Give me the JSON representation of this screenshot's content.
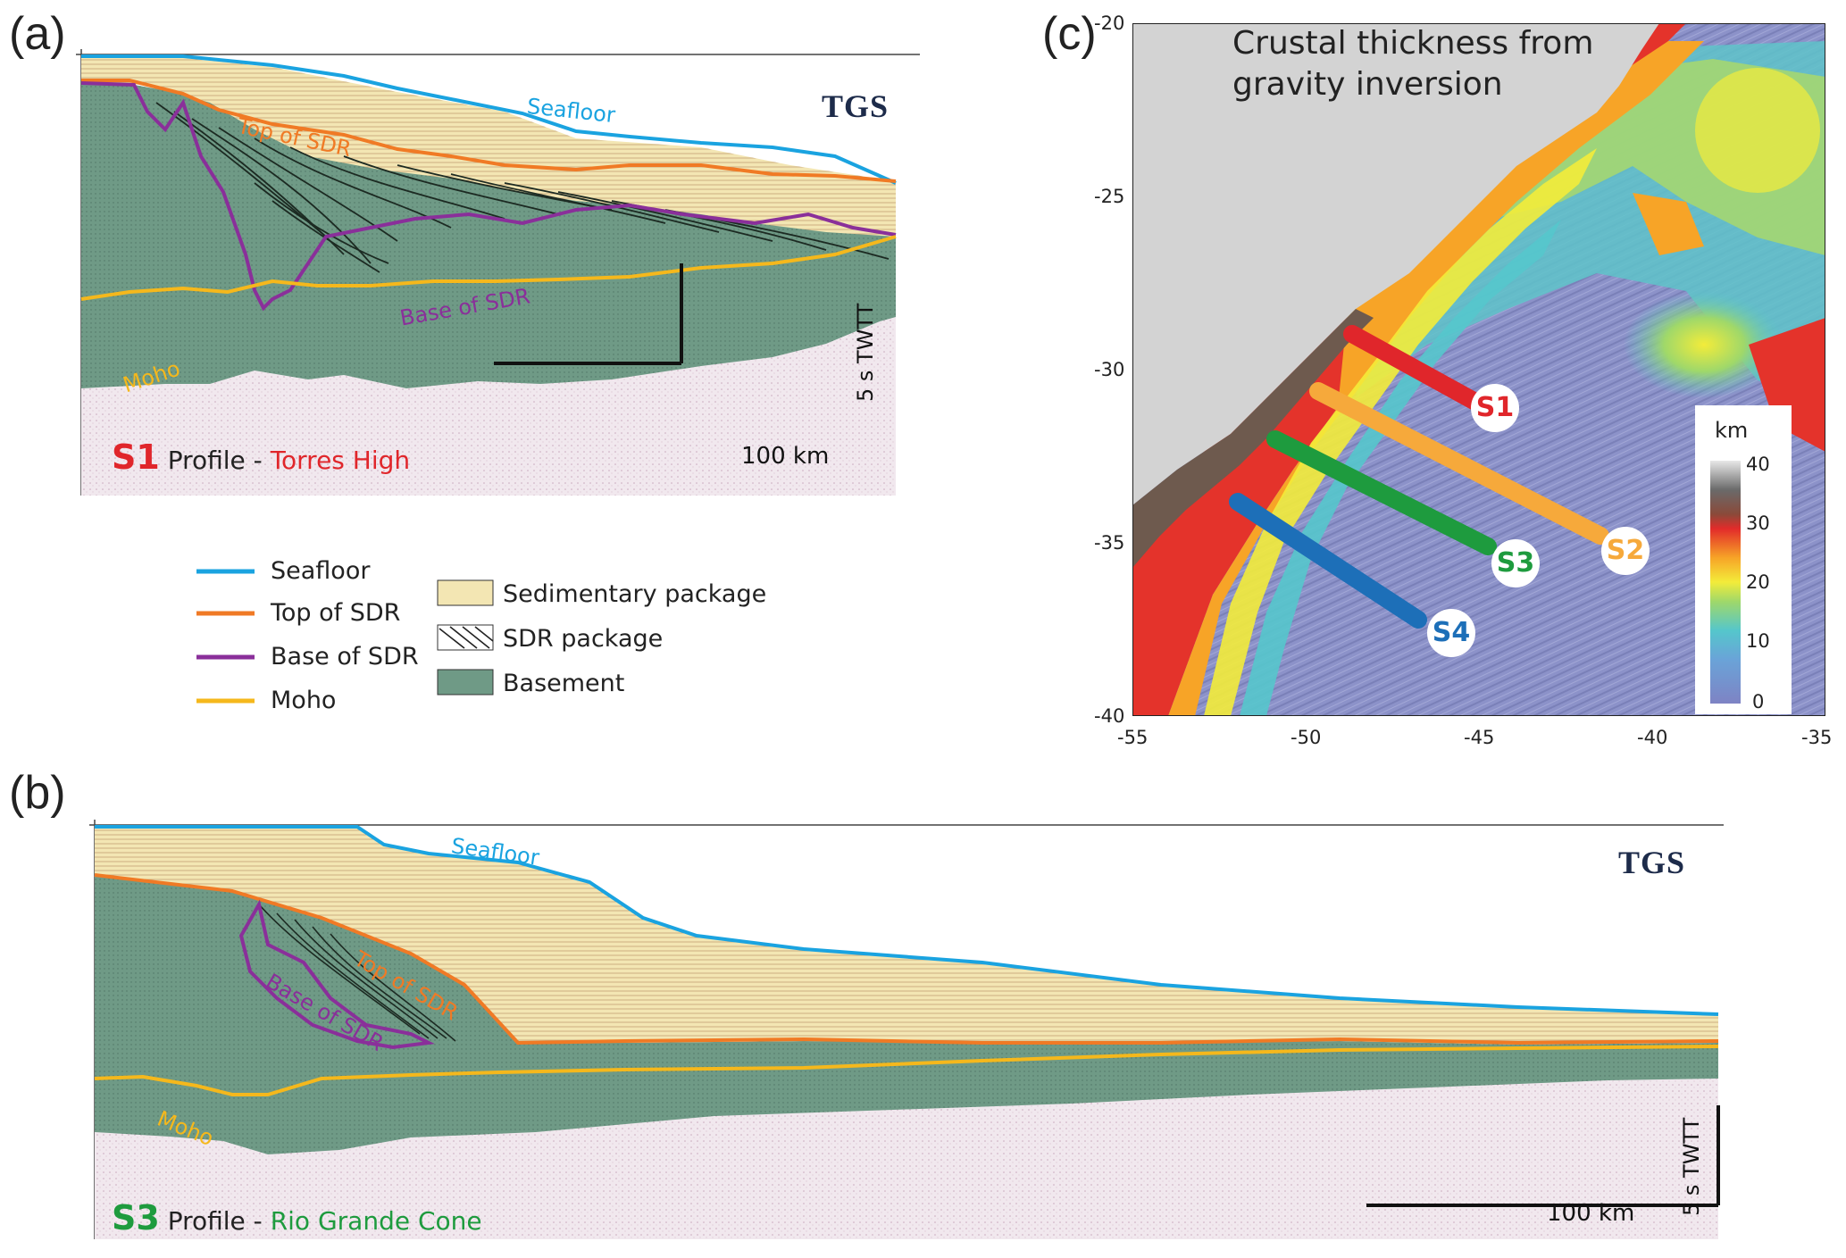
{
  "panels": {
    "a": {
      "letter": "(a)",
      "brand": "TGS",
      "labels": {
        "seafloor": "Seafloor",
        "top_sdr": "Top of SDR",
        "base_sdr": "Base of SDR",
        "moho": "Moho"
      },
      "profile_code": "S1",
      "profile_word": "Profile",
      "profile_sep": " - ",
      "profile_name": "Torres High",
      "scale_h": "100 km",
      "scale_v": "5 s TWTT"
    },
    "b": {
      "letter": "(b)",
      "brand": "TGS",
      "labels": {
        "seafloor": "Seafloor",
        "top_sdr": "Top of SDR",
        "base_sdr": "Base of SDR",
        "moho": "Moho"
      },
      "profile_code": "S3",
      "profile_word": "Profile",
      "profile_sep": " - ",
      "profile_name": "Rio Grande Cone",
      "scale_h": "100 km",
      "scale_v": "5 s TWTT"
    },
    "c": {
      "letter": "(c)",
      "title_line1": "Crustal thickness from",
      "title_line2": "gravity inversion",
      "y_ticks": [
        "-20",
        "-25",
        "-30",
        "-35",
        "-40"
      ],
      "x_ticks": [
        "-55",
        "-50",
        "-45",
        "-40",
        "-35"
      ],
      "colorbar_unit": "km",
      "colorbar_ticks": [
        "40",
        "30",
        "20",
        "10",
        "0"
      ],
      "lines": [
        "S1",
        "S2",
        "S3",
        "S4"
      ]
    }
  },
  "legend": {
    "lines": [
      "Seafloor",
      "Top of SDR",
      "Base of SDR",
      "Moho"
    ],
    "fills": [
      "Sedimentary package",
      "SDR package",
      "Basement"
    ]
  },
  "colors": {
    "seafloor": "#1aa3e0",
    "top_sdr": "#f07a25",
    "base_sdr": "#8a2f9a",
    "moho": "#f5b81c",
    "sediment": "#f3e6b3",
    "basement": "#6f9a86",
    "s1": "#e0262b",
    "s2": "#f6a93b",
    "s3": "#1e9b3e",
    "s4": "#1d6fb8"
  }
}
